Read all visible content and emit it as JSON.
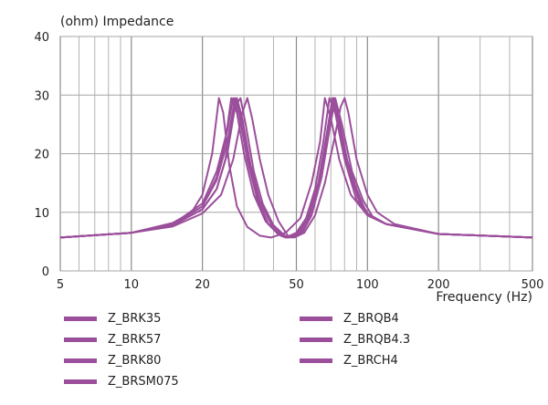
{
  "chart_data": {
    "type": "line",
    "ylabel": "(ohm)  Impedance",
    "xlabel": "Frequency  (Hz)",
    "xscale": "log",
    "xlim": [
      5,
      500
    ],
    "ylim": [
      0,
      40
    ],
    "x_ticks": [
      5,
      10,
      20,
      50,
      100,
      200,
      500
    ],
    "x_tick_labels": [
      "5",
      "10",
      "20",
      "50",
      "100",
      "200",
      "500"
    ],
    "y_ticks": [
      0,
      10,
      20,
      30,
      40
    ],
    "y_tick_labels": [
      "0",
      "10",
      "20",
      "30",
      "40"
    ],
    "grid": true,
    "line_color": "#9b4f9b",
    "legend_position": "bottom",
    "series": [
      {
        "name": "Z_BRK35",
        "values": [
          [
            5,
            5.7
          ],
          [
            10,
            6.5
          ],
          [
            15,
            8
          ],
          [
            20,
            11
          ],
          [
            23,
            16
          ],
          [
            25,
            22
          ],
          [
            26.5,
            29.5
          ],
          [
            28,
            27
          ],
          [
            30,
            20
          ],
          [
            33,
            13
          ],
          [
            37,
            8.5
          ],
          [
            42,
            6.2
          ],
          [
            45,
            5.7
          ],
          [
            50,
            6.5
          ],
          [
            55,
            9
          ],
          [
            60,
            14
          ],
          [
            65,
            22
          ],
          [
            69,
            29.5
          ],
          [
            73,
            27
          ],
          [
            80,
            19
          ],
          [
            90,
            12
          ],
          [
            100,
            9.5
          ],
          [
            120,
            8
          ],
          [
            200,
            6.3
          ],
          [
            500,
            5.7
          ]
        ]
      },
      {
        "name": "Z_BRK57",
        "values": [
          [
            5,
            5.7
          ],
          [
            10,
            6.5
          ],
          [
            15,
            8
          ],
          [
            20,
            11.5
          ],
          [
            23,
            17
          ],
          [
            25.5,
            24
          ],
          [
            27,
            29.5
          ],
          [
            28.5,
            27
          ],
          [
            31,
            19
          ],
          [
            34,
            12.5
          ],
          [
            38,
            8
          ],
          [
            43,
            6
          ],
          [
            46,
            5.7
          ],
          [
            51,
            6.5
          ],
          [
            56,
            9.5
          ],
          [
            62,
            15
          ],
          [
            67,
            23
          ],
          [
            71,
            29.5
          ],
          [
            75,
            26
          ],
          [
            82,
            18
          ],
          [
            92,
            12
          ],
          [
            100,
            9.5
          ],
          [
            120,
            8
          ],
          [
            200,
            6.3
          ],
          [
            500,
            5.7
          ]
        ]
      },
      {
        "name": "Z_BRK80",
        "values": [
          [
            5,
            5.7
          ],
          [
            10,
            6.5
          ],
          [
            15,
            7.8
          ],
          [
            20,
            10.5
          ],
          [
            23,
            14
          ],
          [
            25,
            19
          ],
          [
            27,
            27
          ],
          [
            28,
            29.5
          ],
          [
            29.5,
            26
          ],
          [
            32,
            18
          ],
          [
            35,
            12
          ],
          [
            39,
            8
          ],
          [
            44,
            6
          ],
          [
            47,
            5.7
          ],
          [
            52,
            6.5
          ],
          [
            57,
            9.5
          ],
          [
            63,
            16
          ],
          [
            68,
            24
          ],
          [
            72,
            29.5
          ],
          [
            76,
            25
          ],
          [
            84,
            17
          ],
          [
            94,
            12
          ],
          [
            100,
            9.5
          ],
          [
            120,
            8
          ],
          [
            200,
            6.3
          ],
          [
            500,
            5.7
          ]
        ]
      },
      {
        "name": "Z_BRSM075",
        "values": [
          [
            5,
            5.7
          ],
          [
            10,
            6.5
          ],
          [
            15,
            8.2
          ],
          [
            18,
            10
          ],
          [
            20,
            13
          ],
          [
            22,
            20
          ],
          [
            23.5,
            29.5
          ],
          [
            24.5,
            27
          ],
          [
            26,
            18
          ],
          [
            28,
            11
          ],
          [
            31,
            7.5
          ],
          [
            35,
            6
          ],
          [
            39,
            5.7
          ],
          [
            45,
            6.5
          ],
          [
            52,
            9
          ],
          [
            58,
            15
          ],
          [
            63,
            22
          ],
          [
            66,
            29.5
          ],
          [
            70,
            26
          ],
          [
            76,
            19
          ],
          [
            85,
            13
          ],
          [
            100,
            9.5
          ],
          [
            120,
            8
          ],
          [
            200,
            6.3
          ],
          [
            500,
            5.7
          ]
        ]
      },
      {
        "name": "Z_BRQB4",
        "values": [
          [
            5,
            5.7
          ],
          [
            10,
            6.5
          ],
          [
            15,
            7.8
          ],
          [
            20,
            10.5
          ],
          [
            23,
            14
          ],
          [
            25.5,
            20
          ],
          [
            27.5,
            28
          ],
          [
            29,
            29.5
          ],
          [
            30.5,
            25
          ],
          [
            33,
            17
          ],
          [
            36,
            11.5
          ],
          [
            40,
            7.8
          ],
          [
            45,
            5.9
          ],
          [
            48,
            5.7
          ],
          [
            53,
            6.5
          ],
          [
            58,
            9.5
          ],
          [
            64,
            16
          ],
          [
            69,
            24
          ],
          [
            73,
            29.5
          ],
          [
            78,
            25
          ],
          [
            86,
            17
          ],
          [
            96,
            12
          ],
          [
            105,
            9.3
          ],
          [
            120,
            8
          ],
          [
            200,
            6.3
          ],
          [
            500,
            5.7
          ]
        ]
      },
      {
        "name": "Z_BRQB4.3",
        "values": [
          [
            5,
            5.7
          ],
          [
            10,
            6.5
          ],
          [
            15,
            7.6
          ],
          [
            20,
            9.8
          ],
          [
            24,
            13
          ],
          [
            27,
            19
          ],
          [
            29.5,
            27
          ],
          [
            31,
            29.5
          ],
          [
            32.5,
            26
          ],
          [
            35,
            19
          ],
          [
            38,
            13
          ],
          [
            42,
            8.5
          ],
          [
            46,
            6
          ],
          [
            49,
            5.7
          ],
          [
            54,
            6.5
          ],
          [
            60,
            9.5
          ],
          [
            66,
            15
          ],
          [
            72,
            22
          ],
          [
            77,
            28
          ],
          [
            80,
            29.5
          ],
          [
            83,
            27
          ],
          [
            90,
            19
          ],
          [
            100,
            13
          ],
          [
            110,
            10
          ],
          [
            130,
            8
          ],
          [
            200,
            6.3
          ],
          [
            500,
            5.7
          ]
        ]
      },
      {
        "name": "Z_BRCH4",
        "values": [
          [
            5,
            5.7
          ],
          [
            10,
            6.5
          ],
          [
            15,
            8
          ],
          [
            20,
            11
          ],
          [
            23,
            15.5
          ],
          [
            25.5,
            22
          ],
          [
            27.5,
            29.5
          ],
          [
            29,
            27
          ],
          [
            31.5,
            19
          ],
          [
            34.5,
            12
          ],
          [
            38,
            8
          ],
          [
            43,
            6
          ],
          [
            46,
            5.7
          ],
          [
            51,
            6.5
          ],
          [
            56,
            9.5
          ],
          [
            62,
            15
          ],
          [
            67,
            23
          ],
          [
            71.5,
            29.5
          ],
          [
            75,
            27
          ],
          [
            82,
            19
          ],
          [
            92,
            12.5
          ],
          [
            100,
            9.8
          ],
          [
            120,
            8
          ],
          [
            200,
            6.3
          ],
          [
            500,
            5.7
          ]
        ]
      }
    ]
  }
}
